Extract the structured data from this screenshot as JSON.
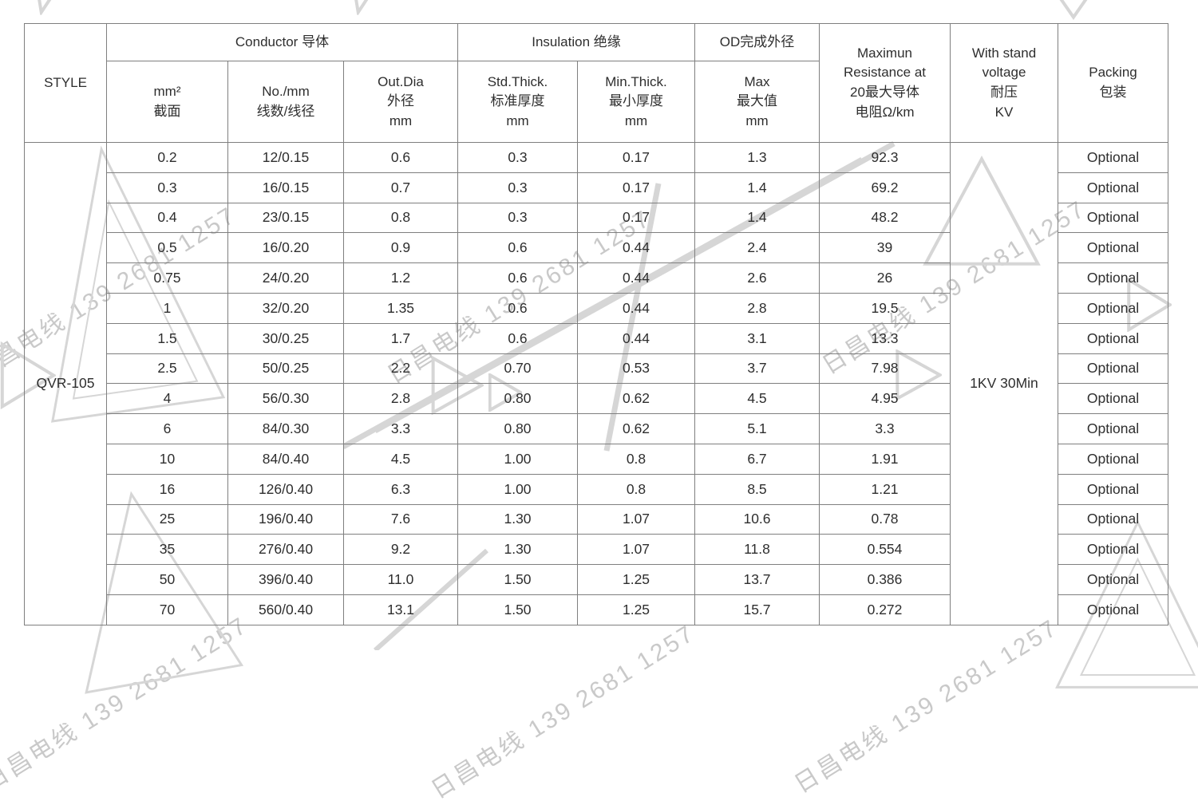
{
  "colors": {
    "text": "#2e2e2e",
    "border": "#7f7f7f",
    "watermark": "#c9c9c9",
    "watermark-shape": "#d6d6d6"
  },
  "watermark": {
    "text": "日昌电线 139 2681 1257"
  },
  "table": {
    "header": {
      "style": "STYLE",
      "groups": [
        {
          "label": "Conductor 导体"
        },
        {
          "label": "Insulation 绝缘"
        },
        {
          "label": "OD完成外径"
        }
      ],
      "columns": [
        "mm²\n截面",
        "No./mm\n线数/线径",
        "Out.Dia\n外径\nmm",
        "Std.Thick.\n标准厚度\nmm",
        "Min.Thick.\n最小厚度\nmm",
        "Max\n最大值\nmm"
      ],
      "resistance": "Maximun\nResistance at\n20最大导体\n电阻Ω/km",
      "withstand": "With stand\nvoltage\n耐压\nKV",
      "packing": "Packing\n包装"
    },
    "style_value": "QVR-105",
    "withstand_value": "1KV 30Min",
    "rows": [
      [
        "0.2",
        "12/0.15",
        "0.6",
        "0.3",
        "0.17",
        "1.3",
        "92.3",
        "Optional"
      ],
      [
        "0.3",
        "16/0.15",
        "0.7",
        "0.3",
        "0.17",
        "1.4",
        "69.2",
        "Optional"
      ],
      [
        "0.4",
        "23/0.15",
        "0.8",
        "0.3",
        "0.17",
        "1.4",
        "48.2",
        "Optional"
      ],
      [
        "0.5",
        "16/0.20",
        "0.9",
        "0.6",
        "0.44",
        "2.4",
        "39",
        "Optional"
      ],
      [
        "0.75",
        "24/0.20",
        "1.2",
        "0.6",
        "0.44",
        "2.6",
        "26",
        "Optional"
      ],
      [
        "1",
        "32/0.20",
        "1.35",
        "0.6",
        "0.44",
        "2.8",
        "19.5",
        "Optional"
      ],
      [
        "1.5",
        "30/0.25",
        "1.7",
        "0.6",
        "0.44",
        "3.1",
        "13.3",
        "Optional"
      ],
      [
        "2.5",
        "50/0.25",
        "2.2",
        "0.70",
        "0.53",
        "3.7",
        "7.98",
        "Optional"
      ],
      [
        "4",
        "56/0.30",
        "2.8",
        "0.80",
        "0.62",
        "4.5",
        "4.95",
        "Optional"
      ],
      [
        "6",
        "84/0.30",
        "3.3",
        "0.80",
        "0.62",
        "5.1",
        "3.3",
        "Optional"
      ],
      [
        "10",
        "84/0.40",
        "4.5",
        "1.00",
        "0.8",
        "6.7",
        "1.91",
        "Optional"
      ],
      [
        "16",
        "126/0.40",
        "6.3",
        "1.00",
        "0.8",
        "8.5",
        "1.21",
        "Optional"
      ],
      [
        "25",
        "196/0.40",
        "7.6",
        "1.30",
        "1.07",
        "10.6",
        "0.78",
        "Optional"
      ],
      [
        "35",
        "276/0.40",
        "9.2",
        "1.30",
        "1.07",
        "11.8",
        "0.554",
        "Optional"
      ],
      [
        "50",
        "396/0.40",
        "11.0",
        "1.50",
        "1.25",
        "13.7",
        "0.386",
        "Optional"
      ],
      [
        "70",
        "560/0.40",
        "13.1",
        "1.50",
        "1.25",
        "15.7",
        "0.272",
        "Optional"
      ]
    ]
  }
}
